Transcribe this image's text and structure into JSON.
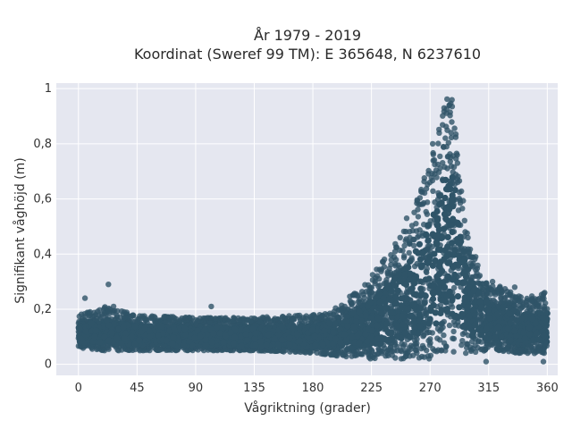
{
  "chart_data": {
    "type": "scatter",
    "title": [
      "År 1979 - 2019",
      "Koordinat (Sweref 99 TM): E 365648, N 6237610"
    ],
    "xlabel": "Vågriktning (grader)",
    "ylabel": "Signifikant våghöjd (m)",
    "xlim": [
      -17,
      368
    ],
    "ylim": [
      -0.04,
      1.02
    ],
    "xticks": [
      0,
      45,
      90,
      135,
      180,
      225,
      270,
      315,
      360
    ],
    "xtick_labels": [
      "0",
      "45",
      "90",
      "135",
      "180",
      "225",
      "270",
      "315",
      "360"
    ],
    "yticks": [
      0,
      0.2,
      0.4,
      0.6,
      0.8,
      1
    ],
    "ytick_labels": [
      "0",
      "0,2",
      "0,4",
      "0,6",
      "0,8",
      "1"
    ],
    "grid": true,
    "legend": "none",
    "colors": {
      "marker": "#2f5468",
      "plot_background": "#e5e7f0",
      "grid": "#ffffff"
    },
    "envelope": {
      "description_of_points": "dense scatter cloud; per-direction band of observed heights",
      "x": [
        0,
        20,
        45,
        90,
        135,
        180,
        200,
        225,
        240,
        255,
        265,
        275,
        280,
        283,
        285,
        287,
        290,
        295,
        300,
        315,
        340,
        360
      ],
      "y_min": [
        0.06,
        0.05,
        0.05,
        0.05,
        0.05,
        0.04,
        0.03,
        0.02,
        0.02,
        0.02,
        0.02,
        0.02,
        0.03,
        0.04,
        0.04,
        0.04,
        0.04,
        0.04,
        0.04,
        0.05,
        0.04,
        0.04
      ],
      "y_max": [
        0.18,
        0.21,
        0.18,
        0.17,
        0.17,
        0.18,
        0.21,
        0.32,
        0.42,
        0.53,
        0.67,
        0.82,
        0.93,
        0.99,
        0.99,
        0.98,
        0.88,
        0.62,
        0.43,
        0.3,
        0.25,
        0.26
      ]
    },
    "outliers": [
      {
        "x": 5,
        "y": 0.24
      },
      {
        "x": 23,
        "y": 0.29
      },
      {
        "x": 27,
        "y": 0.21
      },
      {
        "x": 102,
        "y": 0.21
      },
      {
        "x": 247,
        "y": 0.46
      },
      {
        "x": 252,
        "y": 0.53
      },
      {
        "x": 263,
        "y": 0.58
      },
      {
        "x": 272,
        "y": 0.8
      },
      {
        "x": 305,
        "y": 0.39
      },
      {
        "x": 318,
        "y": 0.3
      },
      {
        "x": 335,
        "y": 0.28
      },
      {
        "x": 358,
        "y": 0.26
      },
      {
        "x": 357,
        "y": 0.01
      },
      {
        "x": 313,
        "y": 0.01
      }
    ]
  }
}
